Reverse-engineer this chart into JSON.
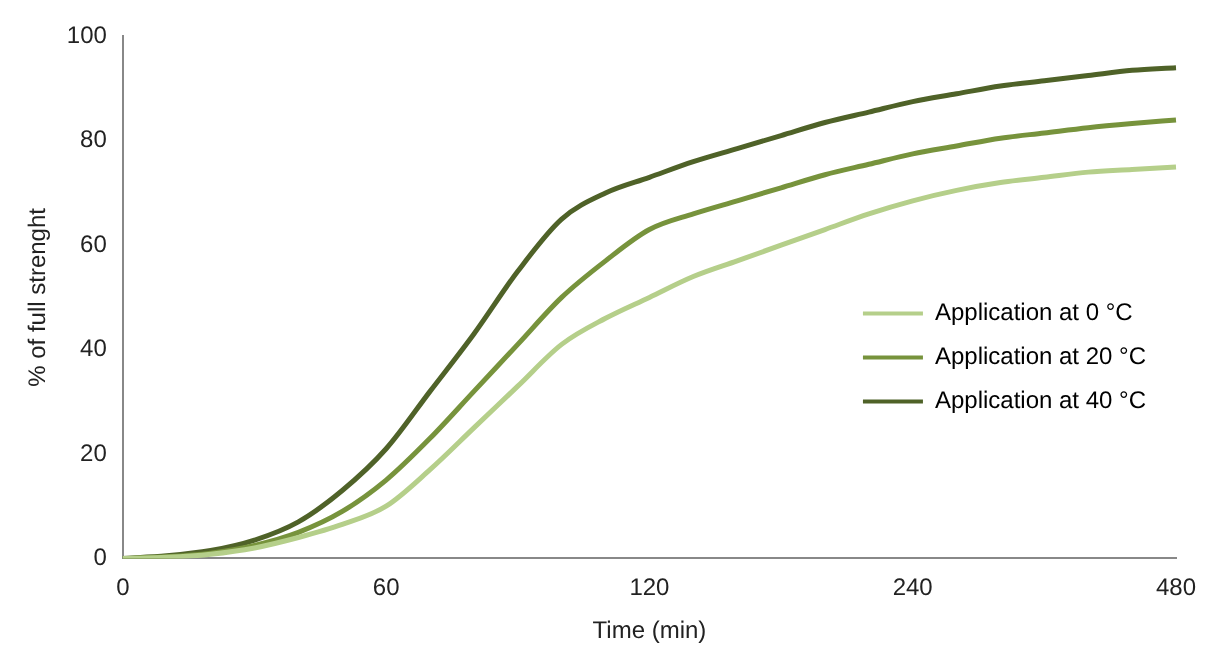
{
  "chart_data": {
    "type": "line",
    "xlabel": "Time (min)",
    "ylabel": "% of full strenght",
    "categories": [
      "0",
      null,
      null,
      null,
      null,
      null,
      "60",
      null,
      null,
      null,
      null,
      null,
      "120",
      null,
      null,
      null,
      null,
      null,
      "240",
      null,
      null,
      null,
      null,
      null,
      "480"
    ],
    "series": [
      {
        "name": "Application at 0 °C",
        "color": "#b5cf8a",
        "values": [
          0,
          0.2,
          0.8,
          2,
          4,
          6.5,
          10,
          17,
          25,
          33,
          41,
          46,
          50,
          54,
          57,
          60,
          63,
          66,
          68.5,
          70.5,
          72,
          73,
          74,
          74.5,
          75
        ]
      },
      {
        "name": "Application at 20 °C",
        "color": "#77933c",
        "values": [
          0,
          0.3,
          1,
          2.5,
          5,
          9,
          15,
          23,
          32,
          41,
          50,
          57,
          63,
          66,
          68.5,
          71,
          73.5,
          75.5,
          77.5,
          79,
          80.5,
          81.5,
          82.5,
          83.3,
          84
        ]
      },
      {
        "name": "Application at 40 °C",
        "color": "#4f6228",
        "values": [
          0,
          0.5,
          1.5,
          3.5,
          7,
          13,
          21,
          32,
          43,
          55,
          65,
          70,
          73,
          76,
          78.5,
          81,
          83.5,
          85.5,
          87.5,
          89,
          90.5,
          91.5,
          92.5,
          93.5,
          94
        ]
      }
    ],
    "ylim": [
      0,
      100
    ],
    "yticks": [
      0,
      20,
      40,
      60,
      80,
      100
    ],
    "grid": false,
    "legend": "right",
    "marker": "none",
    "line_style": "solid"
  }
}
